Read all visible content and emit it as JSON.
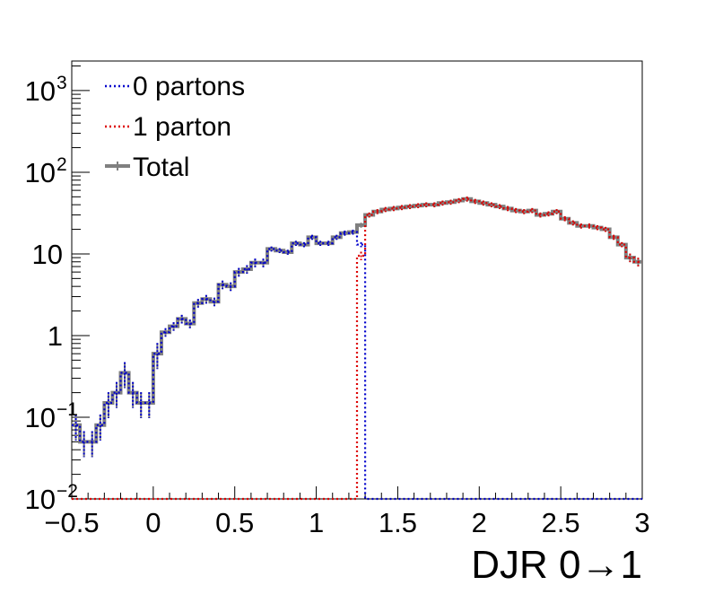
{
  "chart_data": {
    "type": "line",
    "title": "",
    "xlabel": "DJR 0→1",
    "ylabel": "",
    "xlim": [
      -0.5,
      3.0
    ],
    "ylim": [
      0.01,
      2300
    ],
    "yscale": "log",
    "grid": false,
    "legend_placement": "top-left",
    "x_ticks": [
      {
        "v": -0.5,
        "label": "−0.5"
      },
      {
        "v": 0,
        "label": "0"
      },
      {
        "v": 0.5,
        "label": "0.5"
      },
      {
        "v": 1,
        "label": "1"
      },
      {
        "v": 1.5,
        "label": "1.5"
      },
      {
        "v": 2,
        "label": "2"
      },
      {
        "v": 2.5,
        "label": "2.5"
      },
      {
        "v": 3,
        "label": "3"
      }
    ],
    "y_ticks": [
      {
        "v": 0.01,
        "base": "10",
        "exp": "−2"
      },
      {
        "v": 0.1,
        "base": "10",
        "exp": "−1"
      },
      {
        "v": 1,
        "base": "1",
        "exp": ""
      },
      {
        "v": 10,
        "base": "10",
        "exp": ""
      },
      {
        "v": 100,
        "base": "10",
        "exp": "2"
      },
      {
        "v": 1000,
        "base": "10",
        "exp": "3"
      }
    ],
    "bin_edges": [
      -0.5,
      -0.45,
      -0.4,
      -0.35,
      -0.3,
      -0.25,
      -0.2,
      -0.15,
      -0.1,
      -0.05,
      0,
      0.05,
      0.1,
      0.15,
      0.2,
      0.25,
      0.3,
      0.35,
      0.4,
      0.45,
      0.5,
      0.55,
      0.6,
      0.65,
      0.7,
      0.75,
      0.8,
      0.85,
      0.9,
      0.95,
      1,
      1.05,
      1.1,
      1.15,
      1.2,
      1.25,
      1.3,
      1.35,
      1.4,
      1.45,
      1.5,
      1.55,
      1.6,
      1.65,
      1.7,
      1.75,
      1.8,
      1.85,
      1.9,
      1.95,
      2,
      2.05,
      2.1,
      2.15,
      2.2,
      2.25,
      2.3,
      2.35,
      2.4,
      2.45,
      2.5,
      2.55,
      2.6,
      2.65,
      2.7,
      2.75,
      2.8,
      2.85,
      2.9,
      2.95,
      3
    ],
    "series": [
      {
        "name": "0 partons",
        "color": "#0000cc",
        "style": "dotted",
        "values": [
          0.08,
          0.05,
          0.05,
          0.08,
          0.15,
          0.2,
          0.35,
          0.2,
          0.15,
          0.15,
          0.6,
          1.1,
          1.3,
          1.6,
          1.4,
          2.5,
          2.8,
          2.6,
          4.2,
          4.0,
          6.0,
          6.5,
          7.8,
          7.8,
          11.5,
          11.0,
          10.5,
          13.5,
          13.0,
          16.0,
          13.5,
          13.5,
          16.0,
          18.0,
          18.5,
          13.0,
          0,
          0,
          0,
          0,
          0,
          0,
          0,
          0,
          0,
          0,
          0,
          0,
          0,
          0,
          0,
          0,
          0,
          0,
          0,
          0,
          0,
          0,
          0,
          0,
          0,
          0,
          0,
          0,
          0,
          0,
          0,
          0,
          0,
          0
        ]
      },
      {
        "name": "1 parton",
        "color": "#dd0000",
        "style": "dotted",
        "values": [
          0,
          0,
          0,
          0,
          0,
          0,
          0,
          0,
          0,
          0,
          0,
          0,
          0,
          0,
          0,
          0,
          0,
          0,
          0,
          0,
          0,
          0,
          0,
          0,
          0,
          0,
          0,
          0,
          0,
          0,
          0,
          0,
          0,
          0,
          0,
          9.5,
          30.0,
          33.0,
          35.0,
          36.0,
          37.0,
          38.0,
          39.0,
          40.0,
          40.0,
          42.0,
          43.0,
          45.0,
          47.0,
          44.0,
          42.0,
          40.0,
          38.0,
          36.0,
          34.0,
          33.0,
          34.0,
          30.0,
          31.0,
          33.0,
          27.0,
          24.0,
          22.0,
          22.0,
          21.0,
          20.0,
          16.0,
          13.0,
          9.0,
          8.0
        ]
      },
      {
        "name": "Total",
        "color": "#808080",
        "style": "solid",
        "values": [
          0.08,
          0.05,
          0.05,
          0.08,
          0.15,
          0.2,
          0.35,
          0.2,
          0.15,
          0.15,
          0.6,
          1.1,
          1.3,
          1.6,
          1.4,
          2.5,
          2.8,
          2.6,
          4.2,
          4.0,
          6.0,
          6.5,
          7.8,
          7.8,
          11.5,
          11.0,
          10.5,
          13.5,
          13.0,
          16.0,
          13.5,
          13.5,
          16.0,
          18.0,
          18.5,
          22.5,
          30.0,
          33.0,
          35.0,
          36.0,
          37.0,
          38.0,
          39.0,
          40.0,
          40.0,
          42.0,
          43.0,
          45.0,
          47.0,
          44.0,
          42.0,
          40.0,
          38.0,
          36.0,
          34.0,
          33.0,
          34.0,
          30.0,
          31.0,
          33.0,
          27.0,
          24.0,
          22.0,
          22.0,
          21.0,
          20.0,
          16.0,
          13.0,
          9.0,
          8.0
        ]
      }
    ]
  }
}
